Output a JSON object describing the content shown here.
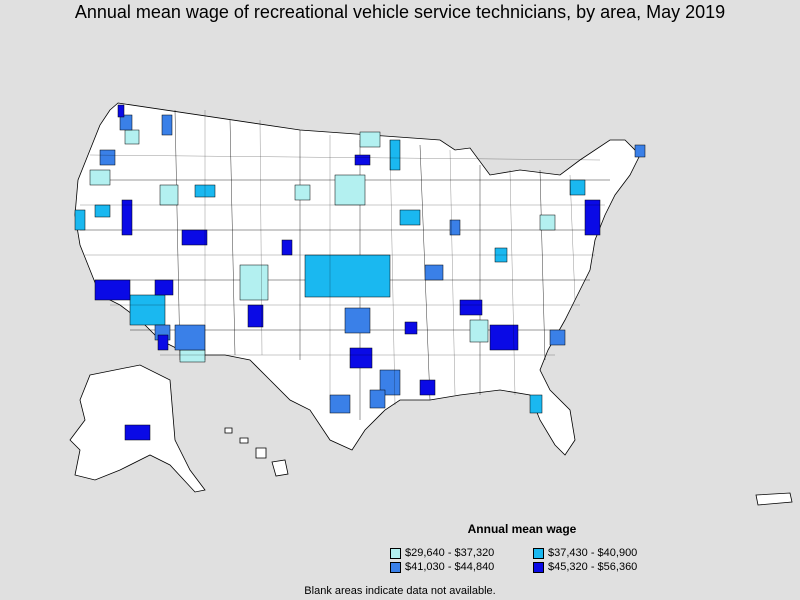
{
  "title": "Annual mean wage of recreational vehicle service technicians, by area, May 2019",
  "legend": {
    "title": "Annual mean wage",
    "items": [
      {
        "label": "$29,640 - $37,320",
        "color": "#b3f0f0"
      },
      {
        "label": "$37,430 - $40,900",
        "color": "#1ab8f0"
      },
      {
        "label": "$41,030 - $44,840",
        "color": "#3a80e8"
      },
      {
        "label": "$45,320 - $56,360",
        "color": "#0a0ae6"
      }
    ]
  },
  "note": "Blank areas indicate data not available.",
  "colors": {
    "background": "#e0e0e0",
    "land": "#ffffff",
    "border": "#000000"
  }
}
